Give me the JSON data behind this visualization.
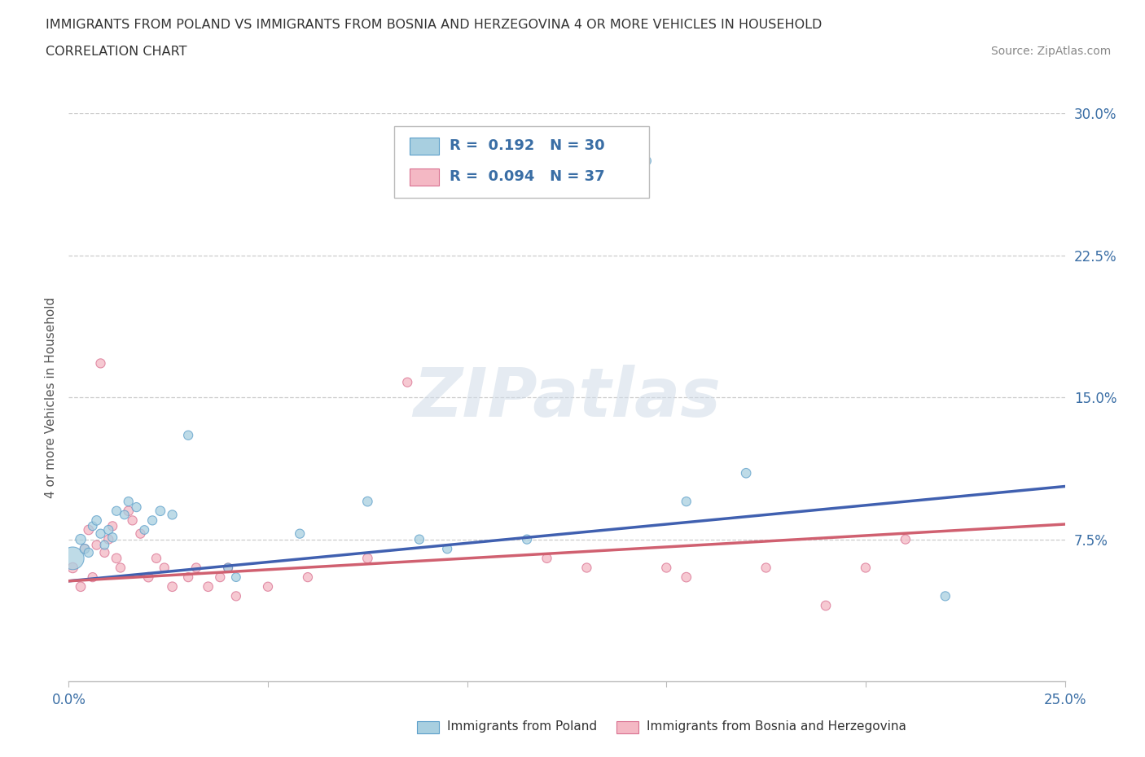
{
  "title_line1": "IMMIGRANTS FROM POLAND VS IMMIGRANTS FROM BOSNIA AND HERZEGOVINA 4 OR MORE VEHICLES IN HOUSEHOLD",
  "title_line2": "CORRELATION CHART",
  "source_text": "Source: ZipAtlas.com",
  "ylabel": "4 or more Vehicles in Household",
  "xlim": [
    0.0,
    0.25
  ],
  "ylim": [
    0.0,
    0.3
  ],
  "ytick_values": [
    0.075,
    0.15,
    0.225,
    0.3
  ],
  "ytick_labels": [
    "7.5%",
    "15.0%",
    "22.5%",
    "30.0%"
  ],
  "legend_label1": "Immigrants from Poland",
  "legend_label2": "Immigrants from Bosnia and Herzegovina",
  "R1": 0.192,
  "N1": 30,
  "R2": 0.094,
  "N2": 37,
  "color1": "#a8cfe0",
  "color2": "#f4b8c4",
  "edge_color1": "#5b9ec9",
  "edge_color2": "#d97090",
  "line_color1": "#4060b0",
  "line_color2": "#d06070",
  "watermark": "ZIPatlas",
  "poland_x": [
    0.001,
    0.003,
    0.004,
    0.005,
    0.006,
    0.007,
    0.008,
    0.009,
    0.01,
    0.011,
    0.012,
    0.014,
    0.015,
    0.017,
    0.019,
    0.021,
    0.023,
    0.026,
    0.03,
    0.04,
    0.042,
    0.058,
    0.075,
    0.088,
    0.095,
    0.115,
    0.145,
    0.155,
    0.17,
    0.22
  ],
  "poland_y": [
    0.065,
    0.075,
    0.07,
    0.068,
    0.082,
    0.085,
    0.078,
    0.072,
    0.08,
    0.076,
    0.09,
    0.088,
    0.095,
    0.092,
    0.08,
    0.085,
    0.09,
    0.088,
    0.13,
    0.06,
    0.055,
    0.078,
    0.095,
    0.075,
    0.07,
    0.075,
    0.275,
    0.095,
    0.11,
    0.045
  ],
  "poland_size": [
    400,
    80,
    70,
    65,
    60,
    70,
    65,
    60,
    65,
    65,
    65,
    60,
    65,
    65,
    60,
    65,
    70,
    65,
    65,
    60,
    60,
    65,
    70,
    65,
    65,
    65,
    65,
    65,
    70,
    65
  ],
  "bosnia_x": [
    0.001,
    0.003,
    0.004,
    0.005,
    0.006,
    0.007,
    0.008,
    0.009,
    0.01,
    0.011,
    0.012,
    0.013,
    0.015,
    0.016,
    0.018,
    0.02,
    0.022,
    0.024,
    0.026,
    0.03,
    0.032,
    0.035,
    0.038,
    0.04,
    0.042,
    0.05,
    0.06,
    0.075,
    0.085,
    0.12,
    0.13,
    0.15,
    0.155,
    0.175,
    0.19,
    0.2,
    0.21
  ],
  "bosnia_y": [
    0.06,
    0.05,
    0.07,
    0.08,
    0.055,
    0.072,
    0.168,
    0.068,
    0.075,
    0.082,
    0.065,
    0.06,
    0.09,
    0.085,
    0.078,
    0.055,
    0.065,
    0.06,
    0.05,
    0.055,
    0.06,
    0.05,
    0.055,
    0.06,
    0.045,
    0.05,
    0.055,
    0.065,
    0.158,
    0.065,
    0.06,
    0.06,
    0.055,
    0.06,
    0.04,
    0.06,
    0.075
  ],
  "bosnia_size": [
    80,
    70,
    65,
    70,
    65,
    65,
    65,
    65,
    65,
    65,
    70,
    65,
    70,
    65,
    65,
    70,
    65,
    65,
    70,
    65,
    65,
    70,
    65,
    65,
    65,
    65,
    65,
    70,
    65,
    65,
    65,
    65,
    70,
    65,
    70,
    65,
    65
  ]
}
